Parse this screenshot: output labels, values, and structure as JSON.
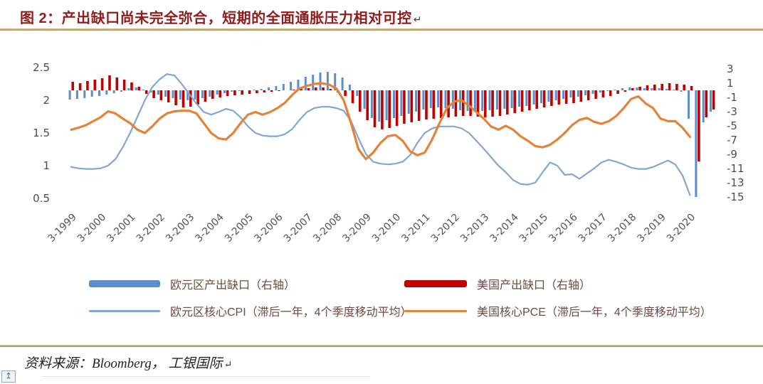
{
  "title": {
    "text": "图 2：产出缺口尚未完全弥合，短期的全面通胀压力相对可控",
    "return_mark": "↵"
  },
  "source": {
    "text": "资料来源：Bloomberg， 工银国际",
    "return_mark": "↵"
  },
  "icons": {
    "paragraph_return": "↵",
    "anchor": "↥"
  },
  "colors": {
    "title_red": "#8e1c1c",
    "divider_gold": "#a98a54",
    "axis_label_gray": "#4d4d4d",
    "legend_text": "#6e4a46",
    "eurozone_bar_blue": "#5b8fc9",
    "us_bar_red": "#c00000",
    "cpi_line_blue": "#7fa8d2",
    "pce_line_orange": "#e5823a"
  },
  "chart_data": {
    "type": "bar",
    "subtype": "combo bar+line, dual axis, quarterly",
    "quarters": {
      "start": "1999Q1",
      "end": "2020Q4",
      "frequency": "quarterly",
      "count": 88
    },
    "x_tick_labels": [
      "3-1999",
      "3-2000",
      "3-2001",
      "3-2002",
      "3-2003",
      "3-2004",
      "3-2005",
      "3-2006",
      "3-2007",
      "3-2008",
      "3-2009",
      "3-2010",
      "3-2011",
      "3-2012",
      "3-2013",
      "3-2014",
      "3-2015",
      "3-2016",
      "3-2017",
      "3-2018",
      "3-2019",
      "3-2020"
    ],
    "left_axis": {
      "ticks": [
        2.5,
        2,
        1.5,
        1,
        0.5
      ],
      "min": 0.5,
      "max": 2.5
    },
    "right_axis": {
      "ticks": [
        3,
        1,
        -1,
        -3,
        -5,
        -7,
        -9,
        -11,
        -13,
        -15
      ],
      "min": -15,
      "max": 3
    },
    "grid": "off",
    "legend_position": "bottom, two columns",
    "series": [
      {
        "name": "欧元区产出缺口（右轴）",
        "type": "bar",
        "axis": "right",
        "color": "#5b8fc9",
        "values": [
          -1.3,
          -1.2,
          -1.1,
          -0.9,
          -0.8,
          -0.6,
          -0.4,
          -0.2,
          0.3,
          0.4,
          0.1,
          -0.3,
          -0.6,
          -0.9,
          -1.1,
          -1.3,
          -1.4,
          -1.3,
          -1.1,
          -0.9,
          -0.6,
          -0.4,
          -0.2,
          -0.1,
          0,
          0.1,
          0.2,
          0.4,
          0.6,
          0.9,
          1.2,
          1.5,
          1.9,
          2.2,
          2.5,
          2.6,
          2.4,
          1.8,
          0.8,
          -0.8,
          -2.6,
          -3.9,
          -4.4,
          -4.2,
          -3.9,
          -3.6,
          -3.3,
          -3.0,
          -2.7,
          -2.5,
          -2.4,
          -2.5,
          -2.6,
          -2.8,
          -2.9,
          -3.0,
          -2.9,
          -2.8,
          -2.7,
          -2.6,
          -2.5,
          -2.3,
          -2.2,
          -2.0,
          -1.8,
          -1.6,
          -1.4,
          -1.2,
          -1.0,
          -0.9,
          -0.7,
          -0.5,
          -0.3,
          -0.1,
          0.1,
          0.3,
          0.4,
          0.4,
          0.3,
          0.3,
          0.3,
          0.2,
          0.1,
          -0.2,
          -4.0,
          -15.0,
          -4.5,
          -3.0
        ]
      },
      {
        "name": "美国产出缺口（右轴）",
        "type": "bar",
        "axis": "right",
        "color": "#c00000",
        "values": [
          1.2,
          1.0,
          1.3,
          1.5,
          1.7,
          2.1,
          1.8,
          1.5,
          1.1,
          0.5,
          -0.5,
          -1.1,
          -1.4,
          -1.7,
          -2.1,
          -2.4,
          -2.3,
          -2.0,
          -1.6,
          -1.2,
          -1.0,
          -0.8,
          -0.7,
          -0.6,
          -0.5,
          -0.4,
          -0.3,
          -0.2,
          -0.1,
          0,
          0.1,
          0.2,
          0.3,
          0.4,
          0.4,
          0.2,
          -0.3,
          -0.8,
          -1.8,
          -3.0,
          -4.2,
          -5.2,
          -5.5,
          -5.3,
          -5.0,
          -4.7,
          -4.5,
          -4.3,
          -4.1,
          -4.0,
          -3.9,
          -3.8,
          -3.7,
          -3.6,
          -3.6,
          -3.7,
          -3.8,
          -3.7,
          -3.6,
          -3.4,
          -3.2,
          -3.0,
          -2.8,
          -2.6,
          -2.4,
          -2.2,
          -2.0,
          -1.9,
          -1.8,
          -1.6,
          -1.4,
          -1.2,
          -1.0,
          -0.8,
          -0.5,
          -0.2,
          0.3,
          0.5,
          0.7,
          0.8,
          0.9,
          1.0,
          0.9,
          0.8,
          0.6,
          -10.0,
          -3.8,
          -2.7
        ]
      },
      {
        "name": "欧元区核心CPI（滞后一年，4个季度移动平均）",
        "type": "line",
        "axis": "left",
        "color": "#7fa8d2",
        "stroke_width": 2.2,
        "values": [
          0.98,
          0.96,
          0.95,
          0.95,
          0.96,
          1.0,
          1.1,
          1.28,
          1.5,
          1.75,
          2.0,
          2.2,
          2.32,
          2.4,
          2.38,
          2.25,
          2.1,
          1.95,
          1.82,
          1.78,
          1.82,
          1.87,
          1.84,
          1.74,
          1.6,
          1.5,
          1.46,
          1.45,
          1.45,
          1.48,
          1.56,
          1.7,
          1.82,
          1.88,
          1.9,
          1.9,
          1.88,
          1.84,
          1.68,
          1.42,
          1.18,
          1.06,
          1.03,
          1.02,
          1.03,
          1.06,
          1.16,
          1.35,
          1.5,
          1.57,
          1.6,
          1.6,
          1.6,
          1.57,
          1.5,
          1.38,
          1.26,
          1.13,
          1.0,
          0.9,
          0.78,
          0.72,
          0.71,
          0.74,
          0.9,
          1.05,
          1.0,
          0.86,
          0.87,
          0.8,
          0.88,
          0.96,
          1.05,
          1.09,
          1.06,
          1.02,
          0.97,
          0.95,
          0.95,
          0.98,
          1.03,
          1.08,
          1.02,
          0.85,
          0.55
        ]
      },
      {
        "name": "美国核心PCE（滞后一年，4个季度移动平均）",
        "type": "line",
        "axis": "left",
        "color": "#e5823a",
        "stroke_width": 3.2,
        "values": [
          1.55,
          1.58,
          1.62,
          1.68,
          1.74,
          1.83,
          1.8,
          1.72,
          1.65,
          1.55,
          1.5,
          1.6,
          1.72,
          1.8,
          1.83,
          1.84,
          1.84,
          1.8,
          1.65,
          1.5,
          1.42,
          1.4,
          1.5,
          1.65,
          1.78,
          1.82,
          1.78,
          1.82,
          1.88,
          1.96,
          2.08,
          2.18,
          2.22,
          2.25,
          2.26,
          2.24,
          2.18,
          2.0,
          1.65,
          1.25,
          1.1,
          1.2,
          1.35,
          1.45,
          1.47,
          1.38,
          1.22,
          1.16,
          1.2,
          1.4,
          1.65,
          1.88,
          1.98,
          2.0,
          1.92,
          1.82,
          1.72,
          1.6,
          1.55,
          1.61,
          1.55,
          1.45,
          1.38,
          1.3,
          1.28,
          1.32,
          1.4,
          1.5,
          1.62,
          1.7,
          1.73,
          1.67,
          1.64,
          1.68,
          1.76,
          1.88,
          2.02,
          2.06,
          1.95,
          1.88,
          1.72,
          1.68,
          1.68,
          1.58,
          1.44
        ]
      }
    ]
  }
}
